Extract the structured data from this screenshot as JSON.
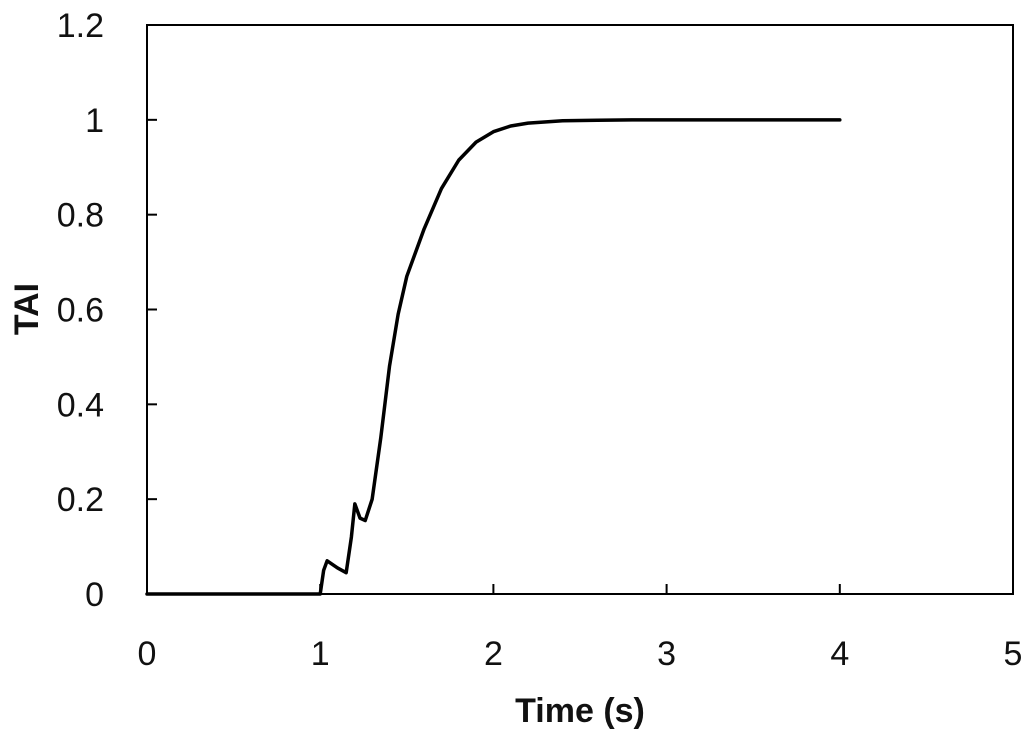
{
  "chart_data": {
    "type": "line",
    "title": "",
    "xlabel": "Time (s)",
    "ylabel": "TAI",
    "xlim": [
      0,
      5
    ],
    "ylim": [
      0,
      1.2
    ],
    "x_ticks": [
      "0",
      "1",
      "2",
      "3",
      "4",
      "5"
    ],
    "y_ticks": [
      "0",
      "0.2",
      "0.4",
      "0.6",
      "0.8",
      "1",
      "1.2"
    ],
    "grid": false,
    "legend": "none",
    "series": [
      {
        "color": "#000000",
        "x": [
          0,
          1.0,
          1.02,
          1.04,
          1.06,
          1.1,
          1.15,
          1.18,
          1.2,
          1.23,
          1.26,
          1.3,
          1.35,
          1.4,
          1.45,
          1.5,
          1.55,
          1.6,
          1.7,
          1.8,
          1.9,
          2.0,
          2.1,
          2.2,
          2.4,
          2.6,
          2.8,
          3.0,
          3.5,
          4.0
        ],
        "y": [
          0,
          0,
          0.05,
          0.07,
          0.065,
          0.055,
          0.045,
          0.12,
          0.19,
          0.16,
          0.155,
          0.2,
          0.33,
          0.48,
          0.59,
          0.67,
          0.72,
          0.77,
          0.855,
          0.915,
          0.953,
          0.975,
          0.987,
          0.993,
          0.998,
          0.999,
          1.0,
          1.0,
          1.0,
          1.0
        ]
      }
    ]
  }
}
